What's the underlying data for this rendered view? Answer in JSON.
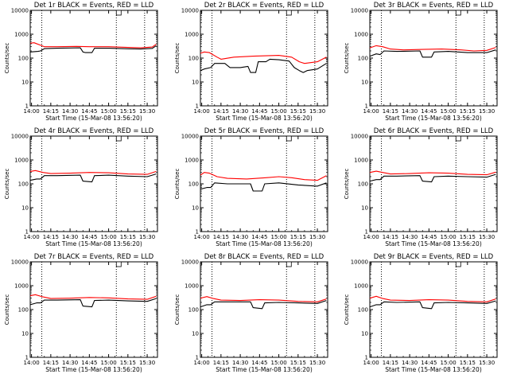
{
  "figure": {
    "panel_title_suffix": "BLACK = Events, RED = LLD",
    "ylabel": "Counts/sec",
    "xlabel": "Start Time (15-Mar-08 13:56:20)",
    "x_tick_labels": [
      "14:00",
      "14:15",
      "14:30",
      "14:45",
      "15:00",
      "15:15",
      "15:30"
    ],
    "y_tick_labels": [
      "1",
      "10",
      "100",
      "1000",
      "10000"
    ],
    "colors": {
      "events": "#000000",
      "lld": "#ff0000",
      "axis": "#000000",
      "background": "#ffffff"
    }
  },
  "chart_data": [
    {
      "type": "line",
      "title": "Det 1r BLACK = Events, RED = LLD",
      "detector": "1r",
      "xlabel": "Start Time (15-Mar-08 13:56:20)",
      "ylabel": "Counts/sec",
      "yscale": "log",
      "xlim": [
        "13:59",
        "15:38"
      ],
      "ylim": [
        1,
        10000
      ],
      "vertical_dotted_lines": [
        "14:08",
        "15:06",
        "15:28"
      ],
      "series": [
        {
          "name": "LLD",
          "color": "#ff0000",
          "x": [
            "13:59",
            "14:02",
            "14:08",
            "14:10",
            "14:20",
            "14:35",
            "14:45",
            "15:00",
            "15:15",
            "15:25",
            "15:34",
            "15:37"
          ],
          "y": [
            420,
            440,
            330,
            300,
            300,
            310,
            300,
            300,
            280,
            270,
            290,
            380
          ]
        },
        {
          "name": "Events",
          "color": "#000000",
          "x": [
            "13:59",
            "14:05",
            "14:07",
            "14:10",
            "14:20",
            "14:38",
            "14:40",
            "14:42",
            "14:47",
            "14:49",
            "15:00",
            "15:15",
            "15:25",
            "15:34",
            "15:37"
          ],
          "y": [
            180,
            190,
            200,
            250,
            260,
            270,
            180,
            170,
            170,
            260,
            260,
            245,
            240,
            255,
            330
          ]
        }
      ]
    },
    {
      "type": "line",
      "title": "Det 2r BLACK = Events, RED = LLD",
      "detector": "2r",
      "xlabel": "Start Time (15-Mar-08 13:56:20)",
      "ylabel": "Counts/sec",
      "yscale": "log",
      "xlim": [
        "13:59",
        "15:38"
      ],
      "ylim": [
        1,
        10000
      ],
      "vertical_dotted_lines": [
        "14:08",
        "15:06",
        "15:28"
      ],
      "series": [
        {
          "name": "LLD",
          "color": "#ff0000",
          "x": [
            "13:59",
            "14:02",
            "14:06",
            "14:12",
            "14:15",
            "14:25",
            "14:40",
            "15:00",
            "15:10",
            "15:16",
            "15:20",
            "15:30",
            "15:37"
          ],
          "y": [
            160,
            180,
            170,
            110,
            90,
            110,
            120,
            130,
            110,
            70,
            60,
            70,
            110
          ]
        },
        {
          "name": "Events",
          "color": "#000000",
          "x": [
            "13:59",
            "14:02",
            "14:07",
            "14:10",
            "14:18",
            "14:22",
            "14:30",
            "14:36",
            "14:38",
            "14:42",
            "14:44",
            "14:50",
            "14:53",
            "15:00",
            "15:08",
            "15:12",
            "15:16",
            "15:19",
            "15:22",
            "15:30",
            "15:37"
          ],
          "y": [
            30,
            35,
            40,
            60,
            60,
            40,
            40,
            45,
            25,
            25,
            70,
            70,
            90,
            85,
            75,
            40,
            30,
            25,
            30,
            35,
            60
          ]
        }
      ]
    },
    {
      "type": "line",
      "title": "Det 3r BLACK = Events, RED = LLD",
      "detector": "3r",
      "xlabel": "Start Time (15-Mar-08 13:56:20)",
      "ylabel": "Counts/sec",
      "yscale": "log",
      "xlim": [
        "13:59",
        "15:38"
      ],
      "ylim": [
        1,
        10000
      ],
      "vertical_dotted_lines": [
        "14:08",
        "15:06",
        "15:28"
      ],
      "series": [
        {
          "name": "LLD",
          "color": "#ff0000",
          "x": [
            "13:59",
            "14:04",
            "14:09",
            "14:15",
            "14:25",
            "14:40",
            "14:55",
            "15:10",
            "15:20",
            "15:30",
            "15:37"
          ],
          "y": [
            270,
            330,
            300,
            240,
            220,
            230,
            240,
            220,
            200,
            210,
            280
          ]
        },
        {
          "name": "Events",
          "color": "#000000",
          "x": [
            "13:59",
            "14:04",
            "14:07",
            "14:10",
            "14:20",
            "14:38",
            "14:40",
            "14:47",
            "14:49",
            "15:00",
            "15:15",
            "15:30",
            "15:37"
          ],
          "y": [
            120,
            150,
            140,
            200,
            190,
            200,
            110,
            110,
            180,
            190,
            170,
            170,
            220
          ]
        }
      ]
    },
    {
      "type": "line",
      "title": "Det 4r BLACK = Events, RED = LLD",
      "detector": "4r",
      "xlabel": "Start Time (15-Mar-08 13:56:20)",
      "ylabel": "Counts/sec",
      "yscale": "log",
      "xlim": [
        "13:59",
        "15:38"
      ],
      "ylim": [
        1,
        10000
      ],
      "vertical_dotted_lines": [
        "14:08",
        "15:06",
        "15:28"
      ],
      "series": [
        {
          "name": "LLD",
          "color": "#ff0000",
          "x": [
            "13:59",
            "14:03",
            "14:09",
            "14:15",
            "14:30",
            "14:45",
            "15:00",
            "15:15",
            "15:30",
            "15:37"
          ],
          "y": [
            330,
            360,
            300,
            270,
            280,
            300,
            290,
            260,
            250,
            330
          ]
        },
        {
          "name": "Events",
          "color": "#000000",
          "x": [
            "13:59",
            "14:04",
            "14:07",
            "14:10",
            "14:20",
            "14:38",
            "14:40",
            "14:47",
            "14:49",
            "15:00",
            "15:15",
            "15:30",
            "15:37"
          ],
          "y": [
            140,
            160,
            160,
            220,
            220,
            230,
            130,
            120,
            220,
            230,
            210,
            200,
            260
          ]
        }
      ]
    },
    {
      "type": "line",
      "title": "Det 5r BLACK = Events, RED = LLD",
      "detector": "5r",
      "xlabel": "Start Time (15-Mar-08 13:56:20)",
      "ylabel": "Counts/sec",
      "yscale": "log",
      "xlim": [
        "13:59",
        "15:38"
      ],
      "ylim": [
        1,
        10000
      ],
      "vertical_dotted_lines": [
        "14:08",
        "15:06",
        "15:28"
      ],
      "series": [
        {
          "name": "LLD",
          "color": "#ff0000",
          "x": [
            "13:59",
            "14:02",
            "14:06",
            "14:12",
            "14:20",
            "14:35",
            "14:50",
            "15:00",
            "15:10",
            "15:20",
            "15:30",
            "15:37"
          ],
          "y": [
            230,
            300,
            280,
            200,
            170,
            160,
            180,
            200,
            180,
            150,
            140,
            220
          ]
        },
        {
          "name": "Events",
          "color": "#000000",
          "x": [
            "13:59",
            "14:04",
            "14:07",
            "14:10",
            "14:20",
            "14:38",
            "14:40",
            "14:47",
            "14:49",
            "15:00",
            "15:15",
            "15:30",
            "15:37"
          ],
          "y": [
            60,
            70,
            70,
            110,
            100,
            100,
            50,
            50,
            100,
            110,
            90,
            80,
            110
          ]
        }
      ]
    },
    {
      "type": "line",
      "title": "Det 6r BLACK = Events, RED = LLD",
      "detector": "6r",
      "xlabel": "Start Time (15-Mar-08 13:56:20)",
      "ylabel": "Counts/sec",
      "yscale": "log",
      "xlim": [
        "13:59",
        "15:38"
      ],
      "ylim": [
        1,
        10000
      ],
      "vertical_dotted_lines": [
        "14:08",
        "15:06",
        "15:28"
      ],
      "series": [
        {
          "name": "LLD",
          "color": "#ff0000",
          "x": [
            "13:59",
            "14:04",
            "14:09",
            "14:15",
            "14:30",
            "14:45",
            "15:00",
            "15:15",
            "15:30",
            "15:37"
          ],
          "y": [
            300,
            340,
            300,
            260,
            270,
            290,
            280,
            250,
            240,
            310
          ]
        },
        {
          "name": "Events",
          "color": "#000000",
          "x": [
            "13:59",
            "14:04",
            "14:07",
            "14:10",
            "14:20",
            "14:38",
            "14:40",
            "14:47",
            "14:49",
            "15:00",
            "15:15",
            "15:30",
            "15:37"
          ],
          "y": [
            130,
            150,
            150,
            210,
            210,
            220,
            130,
            120,
            200,
            210,
            200,
            190,
            250
          ]
        }
      ]
    },
    {
      "type": "line",
      "title": "Det 7r BLACK = Events, RED = LLD",
      "detector": "7r",
      "xlabel": "Start Time (15-Mar-08 13:56:20)",
      "ylabel": "Counts/sec",
      "yscale": "log",
      "xlim": [
        "13:59",
        "15:38"
      ],
      "ylim": [
        1,
        10000
      ],
      "vertical_dotted_lines": [
        "14:08",
        "15:06",
        "15:28"
      ],
      "series": [
        {
          "name": "LLD",
          "color": "#ff0000",
          "x": [
            "13:59",
            "14:03",
            "14:09",
            "14:15",
            "14:30",
            "14:45",
            "15:00",
            "15:15",
            "15:30",
            "15:37"
          ],
          "y": [
            380,
            420,
            340,
            290,
            300,
            320,
            310,
            280,
            270,
            360
          ]
        },
        {
          "name": "Events",
          "color": "#000000",
          "x": [
            "13:59",
            "14:04",
            "14:07",
            "14:10",
            "14:20",
            "14:38",
            "14:40",
            "14:47",
            "14:49",
            "15:00",
            "15:15",
            "15:30",
            "15:37"
          ],
          "y": [
            160,
            190,
            190,
            250,
            250,
            260,
            140,
            130,
            240,
            250,
            230,
            220,
            290
          ]
        }
      ]
    },
    {
      "type": "line",
      "title": "Det 8r BLACK = Events, RED = LLD",
      "detector": "8r",
      "xlabel": "Start Time (15-Mar-08 13:56:20)",
      "ylabel": "Counts/sec",
      "yscale": "log",
      "xlim": [
        "13:59",
        "15:38"
      ],
      "ylim": [
        1,
        10000
      ],
      "vertical_dotted_lines": [
        "14:08",
        "15:06",
        "15:28"
      ],
      "series": [
        {
          "name": "LLD",
          "color": "#ff0000",
          "x": [
            "13:59",
            "14:04",
            "14:09",
            "14:15",
            "14:30",
            "14:45",
            "15:00",
            "15:15",
            "15:30",
            "15:37"
          ],
          "y": [
            300,
            350,
            290,
            250,
            240,
            260,
            250,
            220,
            210,
            280
          ]
        },
        {
          "name": "Events",
          "color": "#000000",
          "x": [
            "13:59",
            "14:04",
            "14:07",
            "14:10",
            "14:20",
            "14:38",
            "14:40",
            "14:47",
            "14:49",
            "15:00",
            "15:15",
            "15:30",
            "15:37"
          ],
          "y": [
            130,
            160,
            160,
            210,
            210,
            210,
            120,
            110,
            190,
            200,
            190,
            180,
            240
          ]
        }
      ]
    },
    {
      "type": "line",
      "title": "Det 9r BLACK = Events, RED = LLD",
      "detector": "9r",
      "xlabel": "Start Time (15-Mar-08 13:56:20)",
      "ylabel": "Counts/sec",
      "yscale": "log",
      "xlim": [
        "13:59",
        "15:38"
      ],
      "ylim": [
        1,
        10000
      ],
      "vertical_dotted_lines": [
        "14:08",
        "15:06",
        "15:28"
      ],
      "series": [
        {
          "name": "LLD",
          "color": "#ff0000",
          "x": [
            "13:59",
            "14:04",
            "14:09",
            "14:15",
            "14:30",
            "14:45",
            "15:00",
            "15:15",
            "15:30",
            "15:37"
          ],
          "y": [
            300,
            360,
            290,
            250,
            240,
            260,
            250,
            220,
            210,
            280
          ]
        },
        {
          "name": "Events",
          "color": "#000000",
          "x": [
            "13:59",
            "14:04",
            "14:07",
            "14:10",
            "14:20",
            "14:38",
            "14:40",
            "14:47",
            "14:49",
            "15:00",
            "15:15",
            "15:30",
            "15:37"
          ],
          "y": [
            130,
            160,
            160,
            210,
            200,
            210,
            120,
            110,
            190,
            200,
            190,
            180,
            230
          ]
        }
      ]
    }
  ]
}
